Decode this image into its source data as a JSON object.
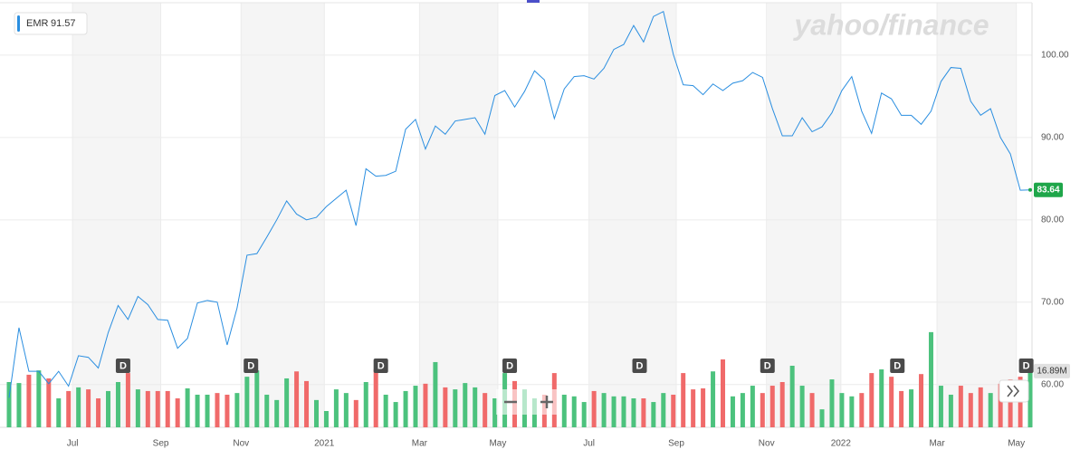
{
  "chart_data": {
    "type": "line",
    "symbol": "EMR",
    "hover_price": 91.57,
    "watermark": "yahoo/finance",
    "xlim": [
      0,
      103
    ],
    "xticks": [
      {
        "value": 6.4,
        "label": "Jul"
      },
      {
        "value": 15.3,
        "label": "Sep"
      },
      {
        "value": 23.4,
        "label": "Nov"
      },
      {
        "value": 31.8,
        "label": "2021"
      },
      {
        "value": 41.4,
        "label": "Mar"
      },
      {
        "value": 49.3,
        "label": "May"
      },
      {
        "value": 58.5,
        "label": "Jul"
      },
      {
        "value": 67.3,
        "label": "Sep"
      },
      {
        "value": 76.4,
        "label": "Nov"
      },
      {
        "value": 83.9,
        "label": "2022"
      },
      {
        "value": 93.6,
        "label": "Mar"
      },
      {
        "value": 101.6,
        "label": "May"
      }
    ],
    "ylim": [
      54.8,
      106.7
    ],
    "yticks": [
      {
        "value": 60,
        "label": "60.00"
      },
      {
        "value": 70,
        "label": "70.00"
      },
      {
        "value": 80,
        "label": "80.00"
      },
      {
        "value": 90,
        "label": "90.00"
      },
      {
        "value": 100,
        "label": "100.00"
      }
    ],
    "grid": true,
    "series": [
      {
        "name": "EMR",
        "color": "#2a8ee0",
        "last_color": "#1fa64a",
        "values": [
          58.4,
          66.9,
          61.6,
          61.6,
          60.1,
          61.6,
          59.8,
          63.5,
          63.3,
          62.0,
          66.3,
          69.6,
          67.9,
          70.7,
          69.7,
          67.9,
          67.8,
          64.4,
          65.6,
          69.9,
          70.2,
          70.0,
          64.8,
          69.3,
          75.7,
          75.9,
          77.9,
          80.0,
          82.3,
          80.7,
          80.0,
          80.3,
          81.6,
          82.6,
          83.6,
          79.3,
          86.2,
          85.3,
          85.4,
          85.9,
          91.0,
          92.2,
          88.6,
          91.4,
          90.4,
          92.0,
          92.2,
          92.4,
          90.4,
          95.1,
          95.7,
          93.7,
          95.6,
          98.1,
          97.0,
          92.3,
          95.9,
          97.4,
          97.5,
          97.1,
          98.4,
          100.7,
          101.3,
          103.6,
          101.6,
          104.7,
          105.3,
          100.1,
          96.4,
          96.3,
          95.2,
          96.5,
          95.7,
          96.6,
          96.9,
          97.9,
          97.3,
          93.5,
          90.2,
          90.2,
          92.4,
          90.7,
          91.3,
          93.0,
          95.7,
          97.4,
          93.2,
          90.5,
          95.4,
          94.7,
          92.7,
          92.7,
          91.6,
          93.2,
          96.8,
          98.5,
          98.4,
          94.4,
          92.7,
          93.5,
          90.0,
          88.0,
          83.6,
          83.64
        ]
      }
    ],
    "volume": {
      "ylim": [
        0,
        128.4
      ],
      "up_color": "#4cc27d",
      "down_color": "#f06a6a",
      "values": [
        13.6,
        13.3,
        15.8,
        17.1,
        14.7,
        8.7,
        10.9,
        12.0,
        11.4,
        8.7,
        10.9,
        13.6,
        16.3,
        11.4,
        10.9,
        10.9,
        10.9,
        8.7,
        11.7,
        9.8,
        9.8,
        10.3,
        9.8,
        10.3,
        15.2,
        17.1,
        9.8,
        8.2,
        14.7,
        16.8,
        13.9,
        8.2,
        4.9,
        11.4,
        10.3,
        8.2,
        13.6,
        17.4,
        9.8,
        7.6,
        10.9,
        12.5,
        13.1,
        19.6,
        12.0,
        11.4,
        13.3,
        12.0,
        10.3,
        8.7,
        16.3,
        13.9,
        11.4,
        8.7,
        9.8,
        16.3,
        9.8,
        9.3,
        7.6,
        10.9,
        10.3,
        9.3,
        9.3,
        8.7,
        8.7,
        7.6,
        10.3,
        9.8,
        16.3,
        11.4,
        11.7,
        16.8,
        20.4,
        9.3,
        10.3,
        12.5,
        10.3,
        12.5,
        13.6,
        18.5,
        12.5,
        10.3,
        5.4,
        14.4,
        10.3,
        9.3,
        10.3,
        16.3,
        17.4,
        15.2,
        10.9,
        11.4,
        16.0,
        28.6,
        12.5,
        9.8,
        12.5,
        10.3,
        12.0,
        10.3,
        13.1,
        14.4,
        15.2,
        16.89
      ],
      "last_label": "16.89M"
    },
    "dividend_markers": [
      {
        "x": 11.5,
        "label": "D"
      },
      {
        "x": 24.4,
        "label": "D"
      },
      {
        "x": 37.5,
        "label": "D"
      },
      {
        "x": 50.5,
        "label": "D"
      },
      {
        "x": 63.6,
        "label": "D"
      },
      {
        "x": 76.5,
        "label": "D"
      },
      {
        "x": 89.6,
        "label": "D"
      },
      {
        "x": 102.6,
        "label": "D"
      }
    ]
  }
}
